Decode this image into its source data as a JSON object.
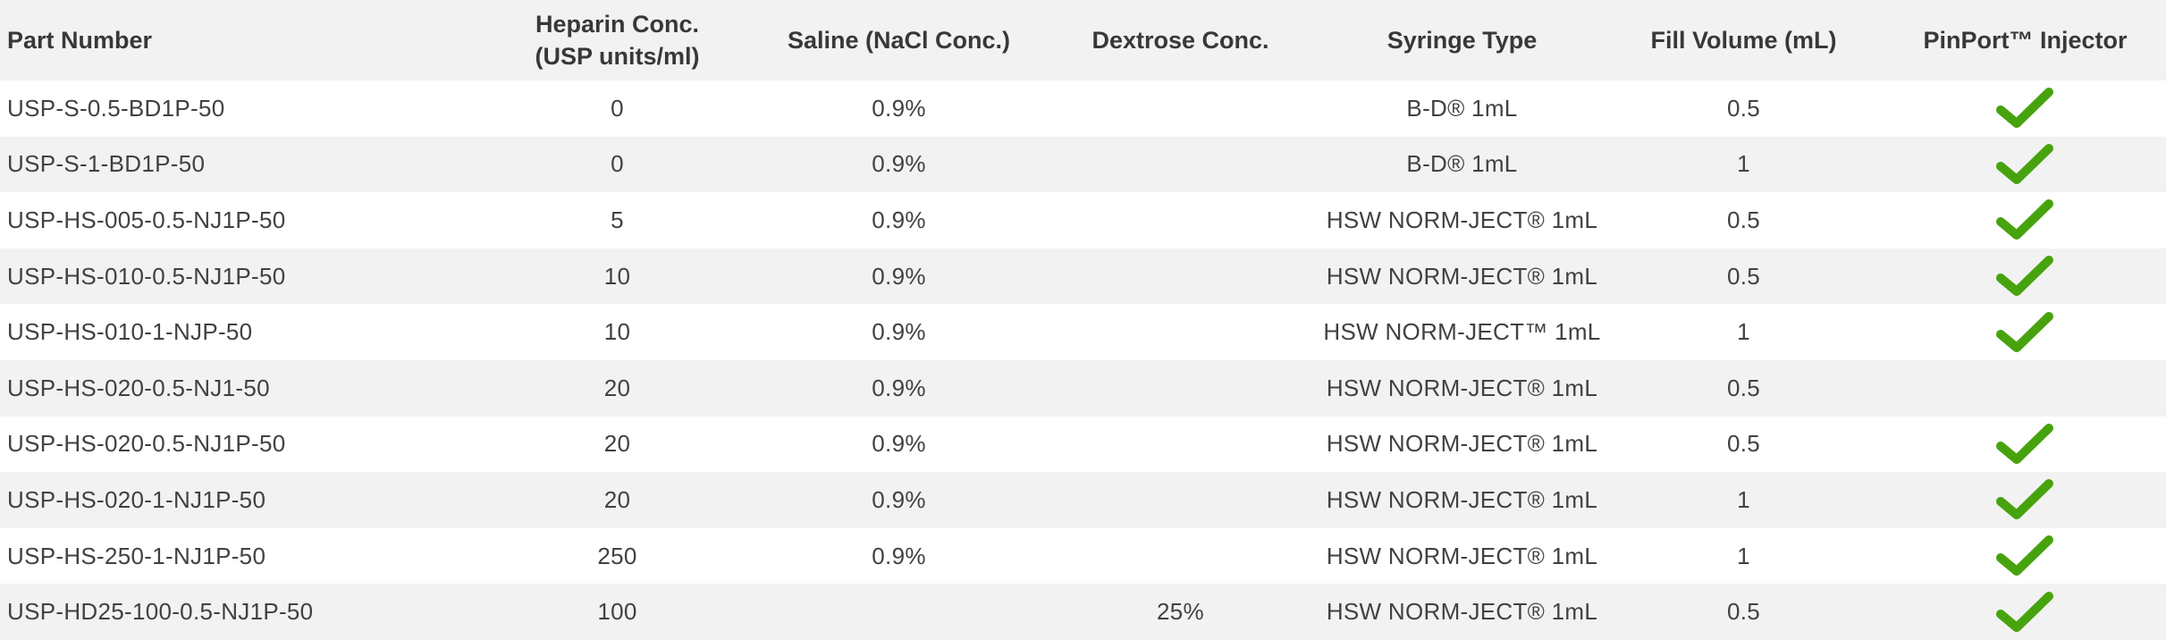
{
  "table": {
    "columns": [
      {
        "key": "part_number",
        "label": "Part Number",
        "align": "left"
      },
      {
        "key": "heparin",
        "label": "Heparin Conc.\n(USP units/ml)",
        "align": "center"
      },
      {
        "key": "saline",
        "label": "Saline (NaCl Conc.)",
        "align": "center"
      },
      {
        "key": "dextrose",
        "label": "Dextrose Conc.",
        "align": "center"
      },
      {
        "key": "syringe",
        "label": "Syringe Type",
        "align": "center"
      },
      {
        "key": "fill_volume",
        "label": "Fill Volume (mL)",
        "align": "center"
      },
      {
        "key": "injector",
        "label": "PinPort™ Injector",
        "align": "center"
      }
    ],
    "rows": [
      {
        "part_number": "USP-S-0.5-BD1P-50",
        "heparin": "0",
        "saline": "0.9%",
        "dextrose": "",
        "syringe": "B-D® 1mL",
        "fill_volume": "0.5",
        "injector": true
      },
      {
        "part_number": "USP-S-1-BD1P-50",
        "heparin": "0",
        "saline": "0.9%",
        "dextrose": "",
        "syringe": "B-D® 1mL",
        "fill_volume": "1",
        "injector": true
      },
      {
        "part_number": "USP-HS-005-0.5-NJ1P-50",
        "heparin": "5",
        "saline": "0.9%",
        "dextrose": "",
        "syringe": "HSW NORM-JECT® 1mL",
        "fill_volume": "0.5",
        "injector": true
      },
      {
        "part_number": "USP-HS-010-0.5-NJ1P-50",
        "heparin": "10",
        "saline": "0.9%",
        "dextrose": "",
        "syringe": "HSW NORM-JECT® 1mL",
        "fill_volume": "0.5",
        "injector": true
      },
      {
        "part_number": "USP-HS-010-1-NJP-50",
        "heparin": "10",
        "saline": "0.9%",
        "dextrose": "",
        "syringe": "HSW NORM-JECT™ 1mL",
        "fill_volume": "1",
        "injector": true
      },
      {
        "part_number": "USP-HS-020-0.5-NJ1-50",
        "heparin": "20",
        "saline": "0.9%",
        "dextrose": "",
        "syringe": "HSW NORM-JECT® 1mL",
        "fill_volume": "0.5",
        "injector": false
      },
      {
        "part_number": "USP-HS-020-0.5-NJ1P-50",
        "heparin": "20",
        "saline": "0.9%",
        "dextrose": "",
        "syringe": "HSW NORM-JECT® 1mL",
        "fill_volume": "0.5",
        "injector": true
      },
      {
        "part_number": "USP-HS-020-1-NJ1P-50",
        "heparin": "20",
        "saline": "0.9%",
        "dextrose": "",
        "syringe": "HSW NORM-JECT® 1mL",
        "fill_volume": "1",
        "injector": true
      },
      {
        "part_number": "USP-HS-250-1-NJ1P-50",
        "heparin": "250",
        "saline": "0.9%",
        "dextrose": "",
        "syringe": "HSW NORM-JECT® 1mL",
        "fill_volume": "1",
        "injector": true
      },
      {
        "part_number": "USP-HD25-100-0.5-NJ1P-50",
        "heparin": "100",
        "saline": "",
        "dextrose": "25%",
        "syringe": "HSW NORM-JECT® 1mL",
        "fill_volume": "0.5",
        "injector": true
      }
    ]
  },
  "icons": {
    "injector_present": "checkmark-icon"
  },
  "colors": {
    "header_bg": "#f2f2f2",
    "row_bg": "#ffffff",
    "row_alt_bg": "#f2f2f2",
    "text": "#414141",
    "header_text": "#383838",
    "check_green": "#47a30d"
  }
}
